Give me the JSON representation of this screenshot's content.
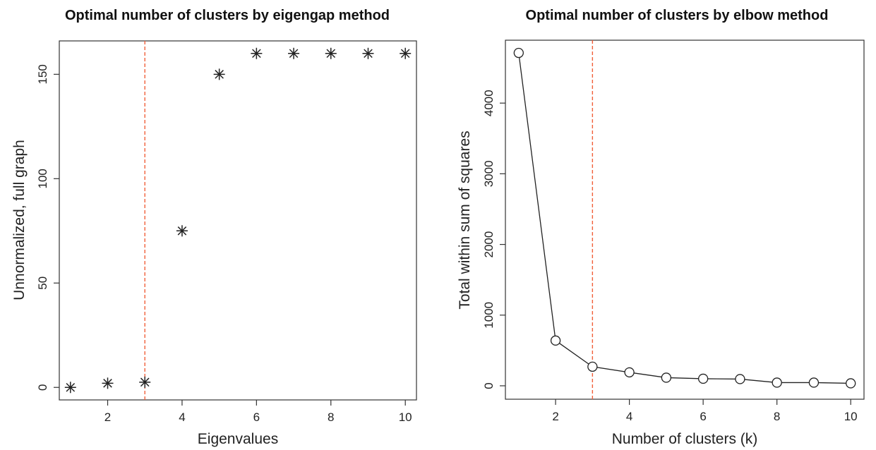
{
  "chart_data": [
    {
      "type": "scatter",
      "title": "Optimal number of clusters by eigengap method",
      "xlabel": "Eigenvalues",
      "ylabel": "Unnormalized, full graph",
      "x": [
        1,
        2,
        3,
        4,
        5,
        6,
        7,
        8,
        9,
        10
      ],
      "values": [
        0,
        2,
        2.5,
        75,
        150,
        160,
        160,
        160,
        160,
        160
      ],
      "xlim": [
        0.7,
        10.3
      ],
      "ylim": [
        -6,
        166
      ],
      "xticks": [
        2,
        4,
        6,
        8,
        10
      ],
      "yticks": [
        0,
        50,
        100,
        150
      ],
      "marker": "asterisk",
      "reference_x": 3,
      "reference_color": "#f2603a",
      "grid": false
    },
    {
      "type": "line",
      "title": "Optimal number of clusters by elbow method",
      "xlabel": "Number of clusters (k)",
      "ylabel": "Total within sum of squares",
      "x": [
        1,
        2,
        3,
        4,
        5,
        6,
        7,
        8,
        9,
        10
      ],
      "values": [
        4710,
        640,
        270,
        190,
        115,
        100,
        95,
        45,
        45,
        35
      ],
      "xlim": [
        0.64,
        10.36
      ],
      "ylim": [
        -190,
        4890
      ],
      "xticks": [
        2,
        4,
        6,
        8,
        10
      ],
      "yticks": [
        0,
        1000,
        2000,
        3000,
        4000
      ],
      "marker": "open-circle",
      "reference_x": 3,
      "reference_color": "#f2603a",
      "grid": false
    }
  ]
}
